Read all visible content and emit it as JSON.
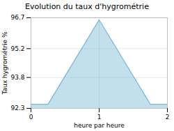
{
  "chart_data": {
    "type": "area",
    "title": "Evolution du taux d'hygrométrie",
    "xlabel": "heure par heure",
    "ylabel": "Taux hygrométrie %",
    "x": [
      0,
      0.25,
      1.0,
      1.75,
      2.0
    ],
    "values": [
      92.5,
      92.5,
      96.6,
      92.5,
      92.5
    ],
    "color": "#7ab8d4",
    "xlim": [
      0,
      2
    ],
    "ylim": [
      92.3,
      96.7
    ],
    "xticks": [
      0,
      1,
      2
    ],
    "yticks": [
      92.3,
      93.8,
      95.2,
      96.7
    ],
    "grid": true
  }
}
